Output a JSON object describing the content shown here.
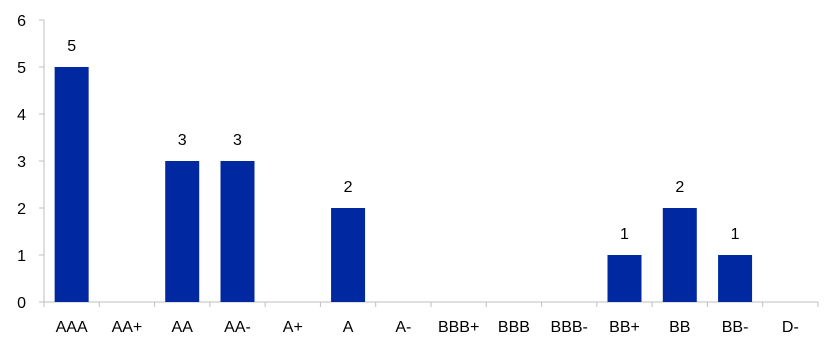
{
  "chart_data": {
    "type": "bar",
    "categories": [
      "AAA",
      "AA+",
      "AA",
      "AA-",
      "A+",
      "A",
      "A-",
      "BBB+",
      "BBB",
      "BBB-",
      "BB+",
      "BB",
      "BB-",
      "D-"
    ],
    "values": [
      5,
      0,
      3,
      3,
      0,
      2,
      0,
      0,
      0,
      0,
      1,
      2,
      1,
      0
    ],
    "data_labels": [
      "5",
      "",
      "3",
      "3",
      "",
      "2",
      "",
      "",
      "",
      "",
      "1",
      "2",
      "1",
      ""
    ],
    "title": "",
    "xlabel": "",
    "ylabel": "",
    "ylim": [
      0,
      6
    ],
    "yticks": [
      "0",
      "1",
      "2",
      "3",
      "4",
      "5",
      "6"
    ],
    "grid": false,
    "legend": "none",
    "colors": {
      "bar": "#0028A0",
      "axis": "#BFBFBF",
      "text": "#000000"
    }
  }
}
